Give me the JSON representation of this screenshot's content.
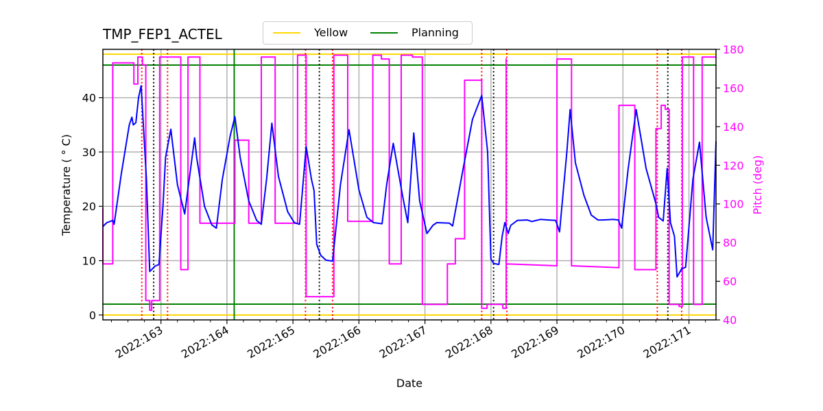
{
  "chart_data": {
    "type": "line",
    "title": "TMP_FEP1_ACTEL",
    "xlabel": "Date",
    "ylabel": "Temperature ($^\\circ$C)",
    "ylabel_display": "Temperature ( ° C)",
    "y2label": "Pitch (deg)",
    "xlim": [
      162.12,
      171.41
    ],
    "ylim": [
      -0.9,
      48.9
    ],
    "y2lim": [
      40,
      180
    ],
    "grid": true,
    "x_ticks": [
      163,
      164,
      165,
      166,
      167,
      168,
      169,
      170,
      171
    ],
    "x_tick_labels": [
      "2022:163",
      "2022:164",
      "2022:165",
      "2022:166",
      "2022:167",
      "2022:168",
      "2022:169",
      "2022:170",
      "2022:171"
    ],
    "y_ticks": [
      0,
      10,
      20,
      30,
      40
    ],
    "y2_ticks": [
      40,
      60,
      80,
      100,
      120,
      140,
      160,
      180
    ],
    "legend": {
      "position": "upper center (above axes)",
      "entries": [
        {
          "label": "Yellow",
          "color": "#ffd700"
        },
        {
          "label": "Planning",
          "color": "#008000"
        }
      ]
    },
    "hlines": [
      {
        "name": "Yellow high",
        "y": 48.0,
        "color": "#ffd700"
      },
      {
        "name": "Yellow low",
        "y": 0.0,
        "color": "#ffd700"
      },
      {
        "name": "Planning high",
        "y": 46.0,
        "color": "#008000"
      },
      {
        "name": "Planning low",
        "y": 2.0,
        "color": "#008000"
      }
    ],
    "vlines": [
      {
        "x": 164.11,
        "color": "#008000",
        "style": "solid"
      },
      {
        "x": 162.71,
        "color": "#ff0000",
        "style": "dotted"
      },
      {
        "x": 162.89,
        "color": "#000000",
        "style": "dotted"
      },
      {
        "x": 163.1,
        "color": "#ff0000",
        "style": "dotted"
      },
      {
        "x": 165.19,
        "color": "#ff0000",
        "style": "dotted"
      },
      {
        "x": 165.4,
        "color": "#000000",
        "style": "dotted"
      },
      {
        "x": 165.6,
        "color": "#ff0000",
        "style": "dotted"
      },
      {
        "x": 167.86,
        "color": "#ff0000",
        "style": "dotted"
      },
      {
        "x": 168.04,
        "color": "#000000",
        "style": "dotted"
      },
      {
        "x": 168.24,
        "color": "#ff0000",
        "style": "dotted"
      },
      {
        "x": 170.52,
        "color": "#ff0000",
        "style": "dotted"
      },
      {
        "x": 170.68,
        "color": "#000000",
        "style": "dotted"
      },
      {
        "x": 170.89,
        "color": "#ff0000",
        "style": "dotted"
      }
    ],
    "series": [
      {
        "name": "TMP_FEP1_ACTEL",
        "axis": "left",
        "color": "#0000ff",
        "x": [
          162.12,
          162.18,
          162.27,
          162.29,
          162.4,
          162.52,
          162.56,
          162.58,
          162.62,
          162.66,
          162.7,
          162.78,
          162.83,
          162.87,
          162.91,
          162.97,
          163.03,
          163.07,
          163.15,
          163.25,
          163.36,
          163.51,
          163.54,
          163.66,
          163.77,
          163.84,
          163.93,
          164.05,
          164.12,
          164.2,
          164.33,
          164.45,
          164.52,
          164.6,
          164.68,
          164.78,
          164.92,
          165.02,
          165.1,
          165.2,
          165.28,
          165.32,
          165.36,
          165.42,
          165.5,
          165.6,
          165.72,
          165.85,
          166.0,
          166.12,
          166.22,
          166.35,
          166.42,
          166.52,
          166.66,
          166.74,
          166.83,
          166.92,
          167.03,
          167.12,
          167.18,
          167.37,
          167.42,
          167.58,
          167.72,
          167.86,
          167.95,
          168.0,
          168.04,
          168.12,
          168.17,
          168.21,
          168.26,
          168.3,
          168.4,
          168.55,
          168.62,
          168.75,
          168.87,
          168.98,
          169.04,
          169.15,
          169.2,
          169.28,
          169.41,
          169.52,
          169.62,
          169.7,
          169.85,
          169.93,
          169.98,
          170.08,
          170.2,
          170.35,
          170.5,
          170.54,
          170.61,
          170.67,
          170.72,
          170.78,
          170.82,
          170.89,
          170.95,
          171.06,
          171.16,
          171.26,
          171.36,
          171.41
        ],
        "y": [
          16.3,
          17.0,
          17.4,
          16.7,
          26.0,
          35.0,
          36.4,
          35.0,
          35.4,
          40.0,
          42.2,
          25.0,
          8.0,
          8.5,
          9.0,
          9.3,
          20.0,
          29.0,
          34.2,
          24.0,
          18.6,
          32.6,
          29.0,
          20.0,
          16.6,
          16.0,
          25.0,
          33.0,
          36.5,
          29.0,
          21.0,
          17.4,
          16.7,
          25.0,
          35.3,
          25.5,
          19.0,
          17.0,
          16.7,
          31.0,
          25.0,
          22.9,
          13.0,
          11.0,
          10.1,
          9.9,
          24.0,
          34.1,
          23.0,
          18.0,
          17.0,
          16.8,
          24.0,
          31.6,
          22.0,
          17.0,
          33.5,
          21.0,
          15.0,
          16.5,
          17.0,
          16.9,
          16.4,
          27.0,
          36.0,
          40.4,
          30.0,
          10.3,
          9.5,
          9.3,
          14.5,
          17.0,
          15.0,
          16.5,
          17.4,
          17.5,
          17.2,
          17.6,
          17.5,
          17.4,
          15.3,
          30.0,
          37.8,
          28.0,
          22.0,
          18.4,
          17.5,
          17.5,
          17.6,
          17.5,
          16.0,
          27.0,
          37.8,
          27.0,
          20.5,
          18.0,
          17.3,
          27.0,
          17.0,
          14.5,
          7.0,
          8.5,
          8.8,
          25.0,
          31.8,
          18.0,
          12.0,
          32.0
        ]
      },
      {
        "name": "Pitch",
        "axis": "right",
        "color": "#ff00ff",
        "x": [
          162.12,
          162.12,
          162.12,
          162.27,
          162.27,
          162.3,
          162.3,
          162.59,
          162.59,
          162.65,
          162.65,
          162.72,
          162.72,
          162.77,
          162.77,
          162.83,
          162.83,
          162.86,
          162.86,
          162.98,
          162.98,
          163.1,
          163.1,
          163.3,
          163.3,
          163.41,
          163.41,
          163.59,
          163.59,
          163.84,
          163.84,
          164.12,
          164.12,
          164.33,
          164.33,
          164.52,
          164.52,
          164.73,
          164.73,
          165.07,
          165.07,
          165.2,
          165.2,
          165.62,
          165.62,
          165.83,
          165.83,
          166.21,
          166.21,
          166.34,
          166.34,
          166.46,
          166.46,
          166.64,
          166.64,
          166.81,
          166.81,
          166.96,
          166.96,
          167.34,
          167.34,
          167.46,
          167.46,
          167.6,
          167.6,
          167.86,
          167.86,
          167.94,
          167.94,
          168.05,
          168.05,
          168.15,
          168.15,
          168.18,
          168.18,
          168.23,
          168.23,
          168.23,
          168.23,
          169.0,
          169.0,
          169.22,
          169.22,
          169.94,
          169.94,
          170.18,
          170.18,
          170.5,
          170.5,
          170.58,
          170.58,
          170.64,
          170.64,
          170.7,
          170.7,
          170.85,
          170.85,
          170.9,
          170.9,
          171.07,
          171.07,
          171.2,
          171.2,
          171.41
        ],
        "y": [
          98,
          69,
          69,
          69,
          173,
          173,
          173,
          173,
          162,
          162,
          176,
          176,
          172,
          172,
          50,
          50,
          45,
          45,
          50,
          50,
          176,
          176,
          176,
          176,
          66,
          66,
          176,
          176,
          90,
          90,
          90,
          90,
          133,
          133,
          90,
          90,
          176,
          176,
          90,
          90,
          177,
          177,
          52,
          52,
          177,
          177,
          91,
          91,
          177,
          177,
          175,
          175,
          69,
          69,
          177,
          177,
          176,
          176,
          48,
          48,
          69,
          69,
          82,
          82,
          164,
          164,
          46,
          46,
          48,
          48,
          48,
          48,
          48,
          48,
          46,
          46,
          175,
          175,
          69,
          68,
          175,
          175,
          68,
          67,
          151,
          151,
          66,
          66,
          139,
          139,
          151,
          151,
          149,
          149,
          48,
          48,
          47,
          47,
          176,
          176,
          48,
          48,
          176,
          176
        ]
      }
    ]
  }
}
